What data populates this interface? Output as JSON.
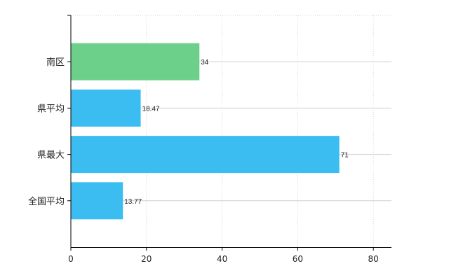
{
  "chart_data": {
    "type": "bar",
    "orientation": "horizontal",
    "categories": [
      "南区",
      "県平均",
      "県最大",
      "全国平均"
    ],
    "values": [
      34,
      18.47,
      71,
      13.77
    ],
    "value_labels": [
      "34",
      "18.47",
      "71",
      "13.77"
    ],
    "bar_colors": [
      "#6dd08a",
      "#3cbdf2",
      "#3cbdf2",
      "#3cbdf2"
    ],
    "xlim": [
      0,
      85
    ],
    "xticks": [
      0,
      20,
      40,
      60,
      80
    ],
    "title": "",
    "xlabel": "",
    "ylabel": "",
    "grid": true,
    "legend": "none"
  }
}
